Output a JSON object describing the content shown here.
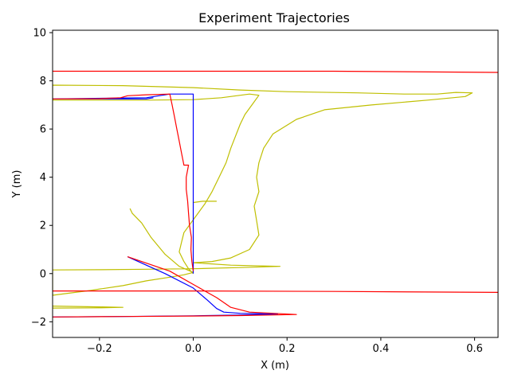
{
  "chart_data": {
    "type": "line",
    "title": "Experiment Trajectories",
    "xlabel": "X (m)",
    "ylabel": "Y (m)",
    "xlim": [
      -0.3,
      0.65
    ],
    "ylim": [
      -2.65,
      10.1
    ],
    "xticks": [
      -0.2,
      0.0,
      0.2,
      0.4,
      0.6
    ],
    "xtick_labels": [
      "−0.2",
      "0.0",
      "0.2",
      "0.4",
      "0.6"
    ],
    "yticks": [
      -2,
      0,
      2,
      4,
      6,
      8,
      10
    ],
    "ytick_labels": [
      "−2",
      "0",
      "2",
      "4",
      "6",
      "8",
      "10"
    ],
    "grid": false,
    "series": [
      {
        "color": "#bfbf00",
        "points": [
          [
            0.0,
            0.0
          ],
          [
            -0.01,
            0.2
          ],
          [
            -0.02,
            0.5
          ],
          [
            -0.03,
            0.9
          ],
          [
            -0.025,
            1.3
          ],
          [
            -0.02,
            1.7
          ],
          [
            -0.005,
            2.1
          ],
          [
            0.01,
            2.5
          ],
          [
            0.025,
            2.9
          ],
          [
            0.04,
            3.4
          ],
          [
            0.055,
            4.0
          ],
          [
            0.07,
            4.6
          ],
          [
            0.08,
            5.2
          ],
          [
            0.09,
            5.7
          ],
          [
            0.1,
            6.2
          ],
          [
            0.11,
            6.6
          ],
          [
            0.125,
            7.0
          ],
          [
            0.14,
            7.4
          ],
          [
            0.12,
            7.45
          ],
          [
            0.06,
            7.3
          ],
          [
            0.0,
            7.22
          ],
          [
            -0.1,
            7.2
          ],
          [
            -0.2,
            7.2
          ],
          [
            -0.3,
            7.2
          ],
          [
            -0.3,
            7.82
          ],
          [
            -0.15,
            7.8
          ],
          [
            0.0,
            7.72
          ],
          [
            0.1,
            7.62
          ],
          [
            0.2,
            7.55
          ],
          [
            0.35,
            7.5
          ],
          [
            0.45,
            7.45
          ],
          [
            0.52,
            7.45
          ],
          [
            0.56,
            7.52
          ],
          [
            0.595,
            7.5
          ],
          [
            0.58,
            7.35
          ],
          [
            0.5,
            7.2
          ],
          [
            0.38,
            7.0
          ],
          [
            0.28,
            6.8
          ],
          [
            0.22,
            6.4
          ],
          [
            0.17,
            5.8
          ],
          [
            0.15,
            5.2
          ],
          [
            0.14,
            4.6
          ],
          [
            0.135,
            4.0
          ],
          [
            0.14,
            3.4
          ],
          [
            0.13,
            2.8
          ],
          [
            0.135,
            2.2
          ],
          [
            0.14,
            1.6
          ],
          [
            0.12,
            1.0
          ],
          [
            0.08,
            0.65
          ],
          [
            0.04,
            0.5
          ],
          [
            0.0,
            0.45
          ],
          [
            0.08,
            0.35
          ],
          [
            0.185,
            0.3
          ],
          [
            0.1,
            0.25
          ],
          [
            0.0,
            0.2
          ],
          [
            -0.1,
            0.18
          ],
          [
            -0.2,
            0.16
          ],
          [
            -0.3,
            0.15
          ],
          [
            -0.3,
            -0.9
          ],
          [
            -0.22,
            -0.7
          ],
          [
            -0.15,
            -0.5
          ],
          [
            -0.1,
            -0.3
          ],
          [
            -0.05,
            -0.15
          ],
          [
            -0.02,
            -0.05
          ],
          [
            0.0,
            0.05
          ],
          [
            -0.03,
            0.3
          ],
          [
            -0.06,
            0.8
          ],
          [
            -0.09,
            1.5
          ],
          [
            -0.11,
            2.1
          ],
          [
            -0.13,
            2.5
          ],
          [
            -0.135,
            2.7
          ]
        ]
      },
      {
        "color": "#bfbf00",
        "points": [
          [
            -0.3,
            -1.35
          ],
          [
            -0.2,
            -1.38
          ],
          [
            -0.15,
            -1.4
          ],
          [
            -0.2,
            -1.42
          ],
          [
            -0.3,
            -1.43
          ]
        ]
      },
      {
        "color": "#bfbf00",
        "points": [
          [
            0.0,
            2.95
          ],
          [
            0.02,
            3.0
          ],
          [
            0.05,
            3.0
          ]
        ]
      },
      {
        "color": "#0000ff",
        "points": [
          [
            0.0,
            0.0
          ],
          [
            0.0,
            7.45
          ],
          [
            -0.05,
            7.45
          ],
          [
            -0.1,
            7.3
          ],
          [
            -0.3,
            7.25
          ],
          [
            -0.1,
            7.25
          ],
          [
            -0.085,
            7.3
          ]
        ]
      },
      {
        "color": "#0000ff",
        "points": [
          [
            -0.14,
            0.7
          ],
          [
            -0.06,
            0.0
          ],
          [
            0.0,
            -0.6
          ],
          [
            0.03,
            -1.1
          ],
          [
            0.05,
            -1.45
          ],
          [
            0.065,
            -1.6
          ],
          [
            0.1,
            -1.65
          ],
          [
            0.18,
            -1.68
          ],
          [
            0.1,
            -1.72
          ],
          [
            0.0,
            -1.75
          ],
          [
            -0.15,
            -1.78
          ],
          [
            -0.3,
            -1.8
          ]
        ]
      },
      {
        "color": "#ff0000",
        "points": [
          [
            0.0,
            0.1
          ],
          [
            -0.003,
            0.5
          ],
          [
            -0.005,
            1.0
          ],
          [
            -0.004,
            1.5
          ],
          [
            -0.008,
            2.0
          ],
          [
            -0.01,
            2.5
          ],
          [
            -0.012,
            3.0
          ],
          [
            -0.015,
            3.5
          ],
          [
            -0.015,
            4.0
          ],
          [
            -0.01,
            4.5
          ],
          [
            -0.02,
            4.5
          ],
          [
            -0.025,
            5.0
          ],
          [
            -0.03,
            5.5
          ],
          [
            -0.035,
            6.0
          ],
          [
            -0.04,
            6.5
          ],
          [
            -0.045,
            7.0
          ],
          [
            -0.05,
            7.45
          ],
          [
            -0.1,
            7.42
          ],
          [
            -0.14,
            7.38
          ],
          [
            -0.155,
            7.3
          ],
          [
            -0.2,
            7.26
          ],
          [
            -0.3,
            7.25
          ]
        ]
      },
      {
        "color": "#ff0000",
        "points": [
          [
            -0.14,
            0.7
          ],
          [
            -0.05,
            0.1
          ],
          [
            0.0,
            -0.45
          ],
          [
            0.05,
            -1.0
          ],
          [
            0.08,
            -1.4
          ],
          [
            0.12,
            -1.6
          ],
          [
            0.22,
            -1.7
          ],
          [
            0.1,
            -1.74
          ],
          [
            0.0,
            -1.76
          ],
          [
            -0.15,
            -1.78
          ],
          [
            -0.3,
            -1.8
          ]
        ]
      },
      {
        "color": "#ff0000",
        "points": [
          [
            -0.3,
            8.4
          ],
          [
            0.0,
            8.4
          ],
          [
            0.3,
            8.4
          ],
          [
            0.65,
            8.35
          ]
        ]
      },
      {
        "color": "#ff0000",
        "points": [
          [
            -0.3,
            -0.72
          ],
          [
            0.0,
            -0.72
          ],
          [
            0.3,
            -0.74
          ],
          [
            0.65,
            -0.78
          ]
        ]
      }
    ]
  }
}
